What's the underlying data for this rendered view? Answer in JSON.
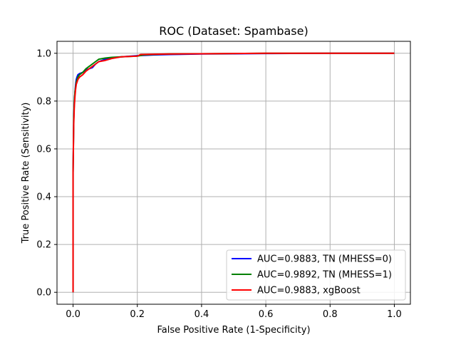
{
  "chart_data": {
    "type": "line",
    "title": "ROC (Dataset: Spambase)",
    "xlabel": "False Positive Rate (1-Specificity)",
    "ylabel": "True Positive Rate (Sensitivity)",
    "xlim": [
      -0.05,
      1.05
    ],
    "ylim": [
      -0.05,
      1.05
    ],
    "xticks": [
      0.0,
      0.2,
      0.4,
      0.6,
      0.8,
      1.0
    ],
    "yticks": [
      0.0,
      0.2,
      0.4,
      0.6,
      0.8,
      1.0
    ],
    "xtick_labels": [
      "0.0",
      "0.2",
      "0.4",
      "0.6",
      "0.8",
      "1.0"
    ],
    "ytick_labels": [
      "0.0",
      "0.2",
      "0.4",
      "0.6",
      "0.8",
      "1.0"
    ],
    "grid": true,
    "legend_position": "lower-right",
    "series": [
      {
        "name": "AUC=0.9883, TN (MHESS=0)",
        "color": "#0000ff",
        "x": [
          0.0,
          0.0,
          0.002,
          0.004,
          0.006,
          0.008,
          0.01,
          0.012,
          0.015,
          0.02,
          0.03,
          0.04,
          0.05,
          0.06,
          0.07,
          0.08,
          0.1,
          0.12,
          0.15,
          0.2,
          0.25,
          0.3,
          0.4,
          0.5,
          0.6,
          0.8,
          1.0
        ],
        "y": [
          0.0,
          0.5,
          0.72,
          0.8,
          0.84,
          0.87,
          0.89,
          0.9,
          0.91,
          0.915,
          0.92,
          0.93,
          0.935,
          0.94,
          0.955,
          0.965,
          0.975,
          0.98,
          0.985,
          0.99,
          0.993,
          0.995,
          0.997,
          0.998,
          0.999,
          1.0,
          1.0
        ]
      },
      {
        "name": "AUC=0.9892, TN (MHESS=1)",
        "color": "#008000",
        "x": [
          0.0,
          0.0,
          0.002,
          0.004,
          0.006,
          0.008,
          0.01,
          0.015,
          0.02,
          0.03,
          0.04,
          0.05,
          0.06,
          0.07,
          0.08,
          0.1,
          0.12,
          0.15,
          0.2,
          0.22,
          0.25,
          0.3,
          0.4,
          0.5,
          0.6,
          0.8,
          1.0
        ],
        "y": [
          0.0,
          0.5,
          0.72,
          0.8,
          0.84,
          0.86,
          0.88,
          0.9,
          0.91,
          0.92,
          0.935,
          0.945,
          0.955,
          0.965,
          0.975,
          0.98,
          0.983,
          0.985,
          0.988,
          0.993,
          0.995,
          0.997,
          0.998,
          0.999,
          1.0,
          1.0,
          1.0
        ]
      },
      {
        "name": "AUC=0.9883, xgBoost",
        "color": "#ff0000",
        "x": [
          0.0,
          0.0,
          0.002,
          0.004,
          0.006,
          0.008,
          0.01,
          0.015,
          0.02,
          0.03,
          0.04,
          0.05,
          0.06,
          0.07,
          0.08,
          0.1,
          0.12,
          0.15,
          0.2,
          0.21,
          0.25,
          0.3,
          0.4,
          0.5,
          0.6,
          0.8,
          1.0
        ],
        "y": [
          0.0,
          0.5,
          0.7,
          0.78,
          0.82,
          0.85,
          0.87,
          0.89,
          0.9,
          0.91,
          0.925,
          0.935,
          0.945,
          0.955,
          0.965,
          0.97,
          0.978,
          0.985,
          0.988,
          0.995,
          0.996,
          0.997,
          0.998,
          0.999,
          1.0,
          1.0,
          1.0
        ]
      }
    ]
  }
}
